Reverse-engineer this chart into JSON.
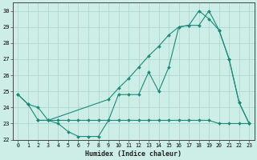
{
  "line1_x": [
    0,
    1,
    2,
    3,
    4,
    5,
    6,
    7,
    8,
    9,
    10,
    11,
    12,
    13,
    14,
    15,
    16,
    17,
    18,
    19,
    20,
    21,
    22,
    23
  ],
  "line1_y": [
    24.8,
    24.2,
    24.0,
    23.2,
    23.0,
    22.5,
    22.2,
    22.2,
    22.2,
    23.2,
    24.8,
    24.8,
    24.8,
    26.2,
    25.0,
    26.5,
    29.0,
    29.1,
    29.1,
    30.0,
    28.8,
    27.0,
    24.3,
    23.0
  ],
  "line2_x": [
    0,
    1,
    2,
    3,
    4,
    5,
    6,
    7,
    8,
    9,
    10,
    11,
    12,
    13,
    14,
    15,
    16,
    17,
    18,
    19,
    20,
    21,
    22,
    23
  ],
  "line2_y": [
    24.8,
    24.2,
    23.2,
    23.2,
    23.2,
    23.2,
    23.2,
    23.2,
    23.2,
    23.2,
    23.2,
    23.2,
    23.2,
    23.2,
    23.2,
    23.2,
    23.2,
    23.2,
    23.2,
    23.2,
    23.0,
    23.0,
    23.0,
    23.0
  ],
  "line3_x": [
    2,
    3,
    9,
    10,
    11,
    12,
    13,
    14,
    15,
    16,
    17,
    18,
    19,
    20,
    21,
    22,
    23
  ],
  "line3_y": [
    23.2,
    23.2,
    24.5,
    25.2,
    25.8,
    26.5,
    27.2,
    27.8,
    28.5,
    29.0,
    29.1,
    30.0,
    29.5,
    28.8,
    27.0,
    24.3,
    23.0
  ],
  "color": "#1a8a7a",
  "bg_color": "#cdeee6",
  "grid_color": "#aad4cc",
  "xlim": [
    -0.5,
    23.5
  ],
  "ylim": [
    22,
    30.5
  ],
  "yticks": [
    22,
    23,
    24,
    25,
    26,
    27,
    28,
    29,
    30
  ],
  "xticks": [
    0,
    1,
    2,
    3,
    4,
    5,
    6,
    7,
    8,
    9,
    10,
    11,
    12,
    13,
    14,
    15,
    16,
    17,
    18,
    19,
    20,
    21,
    22,
    23
  ],
  "xlabel": "Humidex (Indice chaleur)"
}
